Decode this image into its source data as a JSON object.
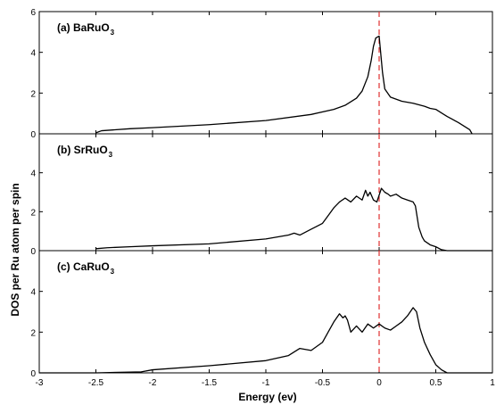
{
  "chart_data": {
    "type": "line",
    "xlabel": "Energy (ev)",
    "ylabel": "DOS per Ru atom per spin",
    "xlim": [
      -3,
      1
    ],
    "x_ticks": [
      "-3",
      "-2.5",
      "-2",
      "-1.5",
      "-1",
      "-0.5",
      "0",
      "0.5",
      "1"
    ],
    "reference_line": {
      "x": 0,
      "color": "#e03030",
      "style": "dashed"
    },
    "line_color": "#000000",
    "panels": [
      {
        "label": "(a) BaRuO",
        "subscript": "3",
        "ylim": [
          0,
          6
        ],
        "y_ticks": [
          "0",
          "2",
          "4",
          "6"
        ],
        "series": [
          {
            "x": [
              -2.5,
              -2.45,
              -2.2,
              -2.0,
              -1.5,
              -1.0,
              -0.6,
              -0.4,
              -0.3,
              -0.2,
              -0.15,
              -0.1,
              -0.07,
              -0.05,
              -0.03,
              0.0,
              0.03,
              0.05,
              0.1,
              0.2,
              0.3,
              0.4,
              0.45,
              0.5,
              0.6,
              0.7,
              0.8,
              0.82
            ],
            "y": [
              0.05,
              0.15,
              0.25,
              0.3,
              0.45,
              0.65,
              0.95,
              1.2,
              1.4,
              1.75,
              2.1,
              2.8,
              3.6,
              4.3,
              4.7,
              4.8,
              3.0,
              2.2,
              1.8,
              1.6,
              1.5,
              1.35,
              1.25,
              1.2,
              0.85,
              0.55,
              0.2,
              0.0
            ]
          }
        ]
      },
      {
        "label": "(b) SrRuO",
        "subscript": "3",
        "ylim": [
          0,
          6
        ],
        "y_ticks": [
          "0",
          "2",
          "4"
        ],
        "series": [
          {
            "x": [
              -2.5,
              -2.4,
              -2.2,
              -2.0,
              -1.5,
              -1.0,
              -0.8,
              -0.75,
              -0.7,
              -0.6,
              -0.5,
              -0.45,
              -0.4,
              -0.35,
              -0.3,
              -0.25,
              -0.2,
              -0.15,
              -0.12,
              -0.1,
              -0.08,
              -0.05,
              -0.02,
              0.02,
              0.05,
              0.08,
              0.1,
              0.15,
              0.2,
              0.25,
              0.3,
              0.32,
              0.35,
              0.38,
              0.4,
              0.45,
              0.5,
              0.55,
              0.6,
              1.0
            ],
            "y": [
              0.1,
              0.15,
              0.2,
              0.25,
              0.35,
              0.6,
              0.8,
              0.9,
              0.8,
              1.1,
              1.4,
              1.8,
              2.2,
              2.5,
              2.7,
              2.5,
              2.8,
              2.6,
              3.1,
              2.8,
              3.0,
              2.6,
              2.5,
              3.2,
              3.0,
              2.9,
              2.8,
              2.9,
              2.7,
              2.6,
              2.5,
              2.3,
              1.2,
              0.7,
              0.5,
              0.3,
              0.2,
              0.05,
              0.0,
              0.0
            ]
          }
        ]
      },
      {
        "label": "(c) CaRuO",
        "subscript": "3",
        "ylim": [
          0,
          6
        ],
        "y_ticks": [
          "0",
          "2",
          "4"
        ],
        "series": [
          {
            "x": [
              -3.0,
              -2.5,
              -2.1,
              -2.0,
              -1.5,
              -1.0,
              -0.8,
              -0.7,
              -0.6,
              -0.5,
              -0.45,
              -0.4,
              -0.35,
              -0.32,
              -0.3,
              -0.28,
              -0.25,
              -0.2,
              -0.15,
              -0.1,
              -0.05,
              0.0,
              0.05,
              0.1,
              0.15,
              0.2,
              0.25,
              0.3,
              0.33,
              0.36,
              0.4,
              0.45,
              0.5,
              0.55,
              0.6,
              1.0
            ],
            "y": [
              0.0,
              0.0,
              0.05,
              0.15,
              0.35,
              0.6,
              0.85,
              1.2,
              1.1,
              1.5,
              2.0,
              2.5,
              2.9,
              2.7,
              2.8,
              2.6,
              2.0,
              2.3,
              2.0,
              2.4,
              2.2,
              2.4,
              2.2,
              2.1,
              2.3,
              2.5,
              2.8,
              3.2,
              3.0,
              2.2,
              1.5,
              0.9,
              0.4,
              0.15,
              0.0,
              0.0
            ]
          }
        ]
      }
    ]
  }
}
